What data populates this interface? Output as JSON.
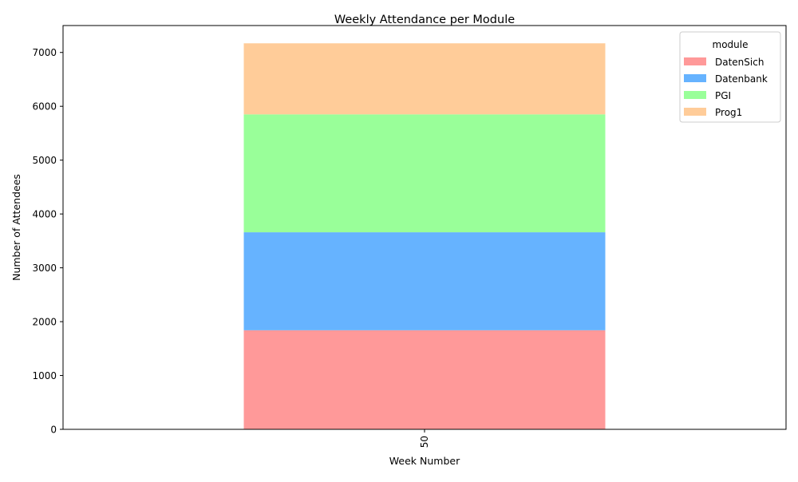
{
  "chart_data": {
    "type": "bar",
    "stacked": true,
    "title": "Weekly Attendance per Module",
    "xlabel": "Week Number",
    "ylabel": "Number of Attendees",
    "categories": [
      "50"
    ],
    "ylim": [
      0,
      7500
    ],
    "yticks": [
      0,
      1000,
      2000,
      3000,
      4000,
      5000,
      6000,
      7000
    ],
    "grid": false,
    "legend": {
      "title": "module",
      "placement": "top-right"
    },
    "series": [
      {
        "name": "DatenSich",
        "values": [
          1840
        ],
        "color": "#ff9999"
      },
      {
        "name": "Datenbank",
        "values": [
          1820
        ],
        "color": "#66b3ff"
      },
      {
        "name": "PGI",
        "values": [
          2190
        ],
        "color": "#99ff99"
      },
      {
        "name": "Prog1",
        "values": [
          1320
        ],
        "color": "#ffcc99"
      }
    ]
  }
}
